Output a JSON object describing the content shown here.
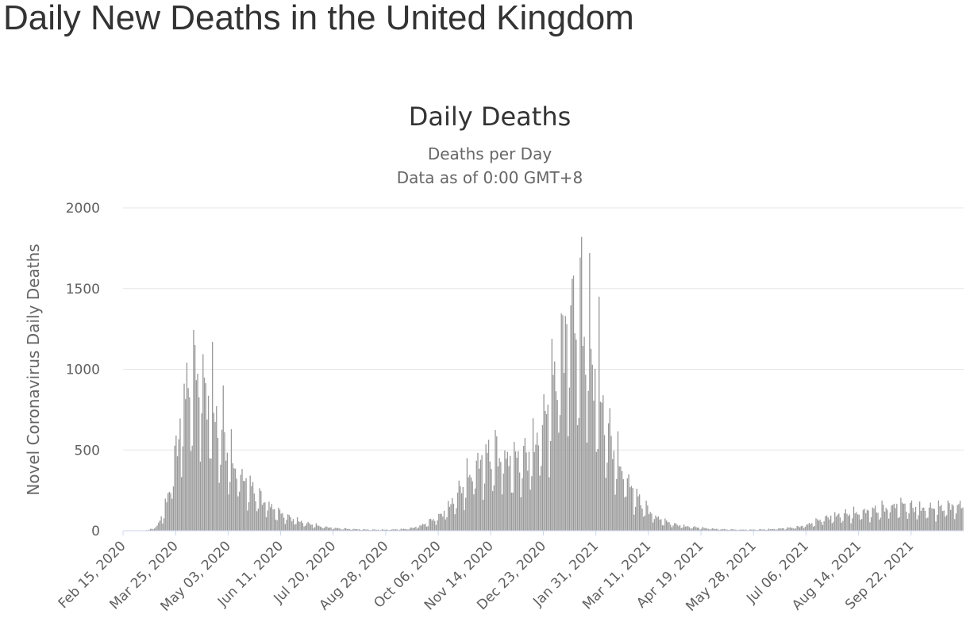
{
  "page": {
    "title": "Daily New Deaths in the United Kingdom"
  },
  "chart_data": {
    "type": "bar",
    "title": "Daily Deaths",
    "subtitle": [
      "Deaths per Day",
      "Data as of 0:00 GMT+8"
    ],
    "ylabel": "Novel Coronavirus Daily Deaths",
    "xlabel": "",
    "ylim": [
      0,
      2000
    ],
    "y_ticks": [
      0,
      500,
      1000,
      1500,
      2000
    ],
    "x_start": "2020-02-15",
    "x_end": "2021-10-30",
    "x_ticks": [
      "Feb 15, 2020",
      "Mar 25, 2020",
      "May 03, 2020",
      "Jun 11, 2020",
      "Jul 20, 2020",
      "Aug 28, 2020",
      "Oct 06, 2020",
      "Nov 14, 2020",
      "Dec 23, 2020",
      "Jan 31, 2021",
      "Mar 11, 2021",
      "Apr 19, 2021",
      "May 28, 2021",
      "Jul 06, 2021",
      "Aug 14, 2021",
      "Sep 22, 2021"
    ],
    "series": [
      {
        "name": "Daily Deaths",
        "color": "#999999",
        "weekly_average": [
          {
            "week_of": "2020-02-15",
            "value": 0
          },
          {
            "week_of": "2020-02-22",
            "value": 0
          },
          {
            "week_of": "2020-02-29",
            "value": 0
          },
          {
            "week_of": "2020-03-07",
            "value": 3
          },
          {
            "week_of": "2020-03-14",
            "value": 25
          },
          {
            "week_of": "2020-03-21",
            "value": 150
          },
          {
            "week_of": "2020-03-28",
            "value": 450
          },
          {
            "week_of": "2020-04-04",
            "value": 780
          },
          {
            "week_of": "2020-04-11",
            "value": 920
          },
          {
            "week_of": "2020-04-18",
            "value": 820
          },
          {
            "week_of": "2020-04-25",
            "value": 650
          },
          {
            "week_of": "2020-05-02",
            "value": 520
          },
          {
            "week_of": "2020-05-09",
            "value": 380
          },
          {
            "week_of": "2020-05-16",
            "value": 300
          },
          {
            "week_of": "2020-05-23",
            "value": 240
          },
          {
            "week_of": "2020-05-30",
            "value": 180
          },
          {
            "week_of": "2020-06-06",
            "value": 140
          },
          {
            "week_of": "2020-06-13",
            "value": 100
          },
          {
            "week_of": "2020-06-20",
            "value": 75
          },
          {
            "week_of": "2020-06-27",
            "value": 55
          },
          {
            "week_of": "2020-07-04",
            "value": 40
          },
          {
            "week_of": "2020-07-11",
            "value": 28
          },
          {
            "week_of": "2020-07-18",
            "value": 20
          },
          {
            "week_of": "2020-07-25",
            "value": 14
          },
          {
            "week_of": "2020-08-01",
            "value": 11
          },
          {
            "week_of": "2020-08-08",
            "value": 9
          },
          {
            "week_of": "2020-08-15",
            "value": 7
          },
          {
            "week_of": "2020-08-22",
            "value": 6
          },
          {
            "week_of": "2020-08-29",
            "value": 6
          },
          {
            "week_of": "2020-09-05",
            "value": 7
          },
          {
            "week_of": "2020-09-12",
            "value": 9
          },
          {
            "week_of": "2020-09-19",
            "value": 15
          },
          {
            "week_of": "2020-09-26",
            "value": 30
          },
          {
            "week_of": "2020-10-03",
            "value": 55
          },
          {
            "week_of": "2020-10-10",
            "value": 85
          },
          {
            "week_of": "2020-10-17",
            "value": 140
          },
          {
            "week_of": "2020-10-24",
            "value": 220
          },
          {
            "week_of": "2020-10-31",
            "value": 300
          },
          {
            "week_of": "2020-11-07",
            "value": 380
          },
          {
            "week_of": "2020-11-14",
            "value": 420
          },
          {
            "week_of": "2020-11-21",
            "value": 430
          },
          {
            "week_of": "2020-11-28",
            "value": 410
          },
          {
            "week_of": "2020-12-05",
            "value": 400
          },
          {
            "week_of": "2020-12-12",
            "value": 420
          },
          {
            "week_of": "2020-12-19",
            "value": 480
          },
          {
            "week_of": "2020-12-26",
            "value": 620
          },
          {
            "week_of": "2021-01-02",
            "value": 830
          },
          {
            "week_of": "2021-01-09",
            "value": 1050
          },
          {
            "week_of": "2021-01-16",
            "value": 1200
          },
          {
            "week_of": "2021-01-23",
            "value": 1150
          },
          {
            "week_of": "2021-01-30",
            "value": 950
          },
          {
            "week_of": "2021-02-06",
            "value": 730
          },
          {
            "week_of": "2021-02-13",
            "value": 530
          },
          {
            "week_of": "2021-02-20",
            "value": 380
          },
          {
            "week_of": "2021-02-27",
            "value": 270
          },
          {
            "week_of": "2021-03-06",
            "value": 180
          },
          {
            "week_of": "2021-03-13",
            "value": 120
          },
          {
            "week_of": "2021-03-20",
            "value": 75
          },
          {
            "week_of": "2021-03-27",
            "value": 50
          },
          {
            "week_of": "2021-04-03",
            "value": 35
          },
          {
            "week_of": "2021-04-10",
            "value": 25
          },
          {
            "week_of": "2021-04-17",
            "value": 20
          },
          {
            "week_of": "2021-04-24",
            "value": 15
          },
          {
            "week_of": "2021-05-01",
            "value": 11
          },
          {
            "week_of": "2021-05-08",
            "value": 8
          },
          {
            "week_of": "2021-05-15",
            "value": 7
          },
          {
            "week_of": "2021-05-22",
            "value": 6
          },
          {
            "week_of": "2021-05-29",
            "value": 6
          },
          {
            "week_of": "2021-06-05",
            "value": 7
          },
          {
            "week_of": "2021-06-12",
            "value": 9
          },
          {
            "week_of": "2021-06-19",
            "value": 12
          },
          {
            "week_of": "2021-06-26",
            "value": 16
          },
          {
            "week_of": "2021-07-03",
            "value": 22
          },
          {
            "week_of": "2021-07-10",
            "value": 35
          },
          {
            "week_of": "2021-07-17",
            "value": 55
          },
          {
            "week_of": "2021-07-24",
            "value": 75
          },
          {
            "week_of": "2021-07-31",
            "value": 85
          },
          {
            "week_of": "2021-08-07",
            "value": 92
          },
          {
            "week_of": "2021-08-14",
            "value": 100
          },
          {
            "week_of": "2021-08-21",
            "value": 108
          },
          {
            "week_of": "2021-08-28",
            "value": 115
          },
          {
            "week_of": "2021-09-04",
            "value": 125
          },
          {
            "week_of": "2021-09-11",
            "value": 140
          },
          {
            "week_of": "2021-09-18",
            "value": 145
          },
          {
            "week_of": "2021-09-25",
            "value": 135
          },
          {
            "week_of": "2021-10-02",
            "value": 125
          },
          {
            "week_of": "2021-10-09",
            "value": 125
          },
          {
            "week_of": "2021-10-16",
            "value": 130
          },
          {
            "week_of": "2021-10-23",
            "value": 140
          }
        ],
        "notable_peaks": [
          {
            "date": "2020-04-08",
            "value": 1150
          },
          {
            "date": "2020-04-21",
            "value": 1170
          },
          {
            "date": "2020-04-29",
            "value": 900
          },
          {
            "date": "2021-01-08",
            "value": 1330
          },
          {
            "date": "2021-01-13",
            "value": 1560
          },
          {
            "date": "2021-01-20",
            "value": 1820
          },
          {
            "date": "2021-01-26",
            "value": 1720
          },
          {
            "date": "2021-02-02",
            "value": 1450
          }
        ]
      }
    ]
  }
}
